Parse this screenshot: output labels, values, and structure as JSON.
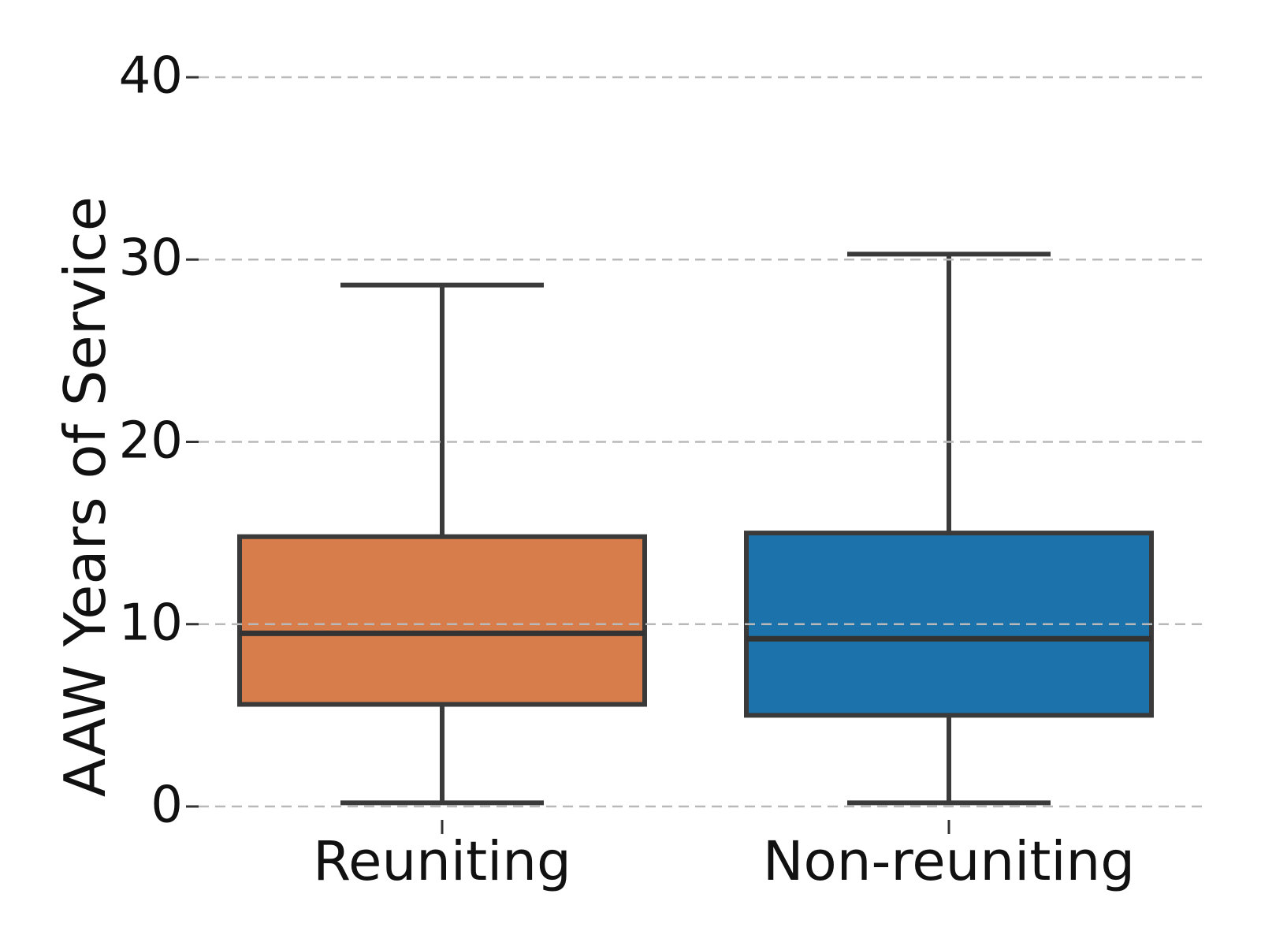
{
  "chart_data": {
    "type": "boxplot",
    "title": "",
    "xlabel": "",
    "ylabel": "AAW Years of Service",
    "categories": [
      "Reuniting",
      "Non-reuniting"
    ],
    "y_ticks": [
      "0",
      "10",
      "20",
      "30",
      "40"
    ],
    "ylim": [
      0,
      40
    ],
    "grid": {
      "visible": true,
      "orientation": "horizontal",
      "style": "dashed"
    },
    "legend": {
      "visible": false
    },
    "series": [
      {
        "name": "Reuniting",
        "fill_color": "#d67d4b",
        "stats": {
          "whisker_low": 0.2,
          "q1": 5.6,
          "median": 9.5,
          "q3": 14.8,
          "whisker_high": 28.6
        }
      },
      {
        "name": "Non-reuniting",
        "fill_color": "#1c72aa",
        "stats": {
          "whisker_low": 0.2,
          "q1": 5.0,
          "median": 9.2,
          "q3": 15.0,
          "whisker_high": 30.3
        }
      }
    ],
    "colors": {
      "box_edge": "#3a3a3a",
      "median_line": "#333333",
      "whisker": "#3a3a3a",
      "gridline": "#b9b9b9",
      "tick_mark": "#333333",
      "text": "#111111",
      "background": "#ffffff"
    }
  }
}
